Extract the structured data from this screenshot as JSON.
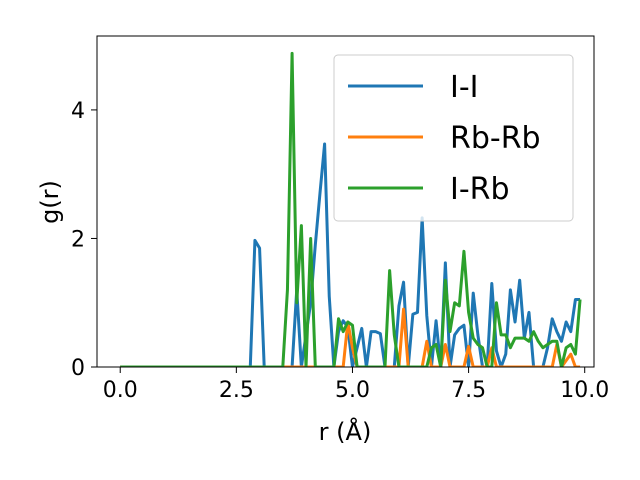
{
  "chart_data": {
    "type": "line",
    "xlabel": "r (Å)",
    "ylabel": "g(r)",
    "xlim": [
      -0.5,
      10.2
    ],
    "ylim": [
      0,
      5.15
    ],
    "xticks": [
      0.0,
      2.5,
      5.0,
      7.5,
      10.0
    ],
    "xtick_labels": [
      "0.0",
      "2.5",
      "5.0",
      "7.5",
      "10.0"
    ],
    "yticks": [
      0,
      2,
      4
    ],
    "ytick_labels": [
      "0",
      "2",
      "4"
    ],
    "grid": false,
    "legend_position": "top-right",
    "series": [
      {
        "name": "I-I",
        "color": "#1f77b4",
        "x": [
          0.0,
          0.5,
          1.0,
          1.5,
          2.0,
          2.5,
          2.8,
          2.9,
          3.0,
          3.1,
          3.2,
          3.5,
          3.7,
          3.8,
          3.9,
          4.0,
          4.1,
          4.2,
          4.3,
          4.4,
          4.5,
          4.6,
          4.7,
          4.8,
          4.9,
          5.0,
          5.1,
          5.2,
          5.3,
          5.4,
          5.5,
          5.6,
          5.7,
          5.8,
          5.9,
          6.0,
          6.1,
          6.2,
          6.3,
          6.4,
          6.5,
          6.6,
          6.7,
          6.8,
          6.9,
          7.0,
          7.1,
          7.2,
          7.3,
          7.4,
          7.5,
          7.6,
          7.7,
          7.8,
          7.9,
          8.0,
          8.1,
          8.2,
          8.3,
          8.4,
          8.5,
          8.6,
          8.7,
          8.8,
          8.9,
          9.0,
          9.1,
          9.2,
          9.3,
          9.4,
          9.5,
          9.6,
          9.7,
          9.8,
          9.9
        ],
        "values": [
          0,
          0,
          0,
          0,
          0,
          0,
          0,
          1.97,
          1.85,
          0,
          0,
          0,
          0,
          1.2,
          0.0,
          0.5,
          1.0,
          1.9,
          2.7,
          3.47,
          1.1,
          0,
          0.55,
          0.72,
          0.62,
          0,
          0.3,
          0.6,
          0,
          0.55,
          0.55,
          0.52,
          0,
          0,
          0,
          0.95,
          1.32,
          0,
          0.82,
          0.85,
          2.32,
          0.8,
          0,
          0.72,
          0,
          1.62,
          0,
          0.5,
          0.6,
          0.65,
          0,
          1.15,
          0.5,
          0,
          0,
          1.3,
          0.25,
          0,
          0.2,
          1.2,
          0.7,
          1.35,
          0.45,
          0.85,
          0,
          0,
          0,
          0.3,
          0.75,
          0.55,
          0.4,
          0.7,
          0.55,
          1.05,
          1.05
        ]
      },
      {
        "name": "Rb-Rb",
        "color": "#ff7f0e",
        "x": [
          0.0,
          0.5,
          1.0,
          1.5,
          2.0,
          2.5,
          3.0,
          3.5,
          4.0,
          4.5,
          4.8,
          4.9,
          5.0,
          5.1,
          5.5,
          6.0,
          6.1,
          6.2,
          6.3,
          6.5,
          6.6,
          6.7,
          6.9,
          7.0,
          7.1,
          7.4,
          7.5,
          7.6,
          7.9,
          8.0,
          8.1,
          8.5,
          9.0,
          9.3,
          9.4,
          9.5,
          9.7,
          9.8,
          9.9
        ],
        "values": [
          0,
          0,
          0,
          0,
          0,
          0,
          0,
          0,
          0,
          0,
          0,
          0.7,
          0.3,
          0,
          0,
          0,
          0.9,
          0,
          0,
          0,
          0.4,
          0,
          0,
          0.35,
          0,
          0,
          0.32,
          0,
          0,
          0.3,
          0,
          0,
          0,
          0,
          0.35,
          0,
          0.2,
          0,
          0
        ]
      },
      {
        "name": "I-Rb",
        "color": "#2ca02c",
        "x": [
          0.0,
          0.5,
          1.0,
          1.5,
          2.0,
          2.5,
          3.0,
          3.5,
          3.6,
          3.7,
          3.8,
          3.9,
          4.0,
          4.1,
          4.2,
          4.3,
          4.5,
          4.6,
          4.7,
          4.8,
          4.9,
          5.0,
          5.1,
          5.5,
          5.7,
          5.8,
          5.9,
          6.0,
          6.1,
          6.2,
          6.3,
          6.4,
          6.5,
          6.6,
          6.7,
          6.8,
          6.9,
          7.0,
          7.1,
          7.2,
          7.3,
          7.4,
          7.5,
          7.6,
          7.7,
          7.8,
          7.9,
          8.0,
          8.1,
          8.2,
          8.3,
          8.4,
          8.5,
          8.6,
          8.7,
          8.8,
          8.9,
          9.0,
          9.1,
          9.2,
          9.3,
          9.4,
          9.5,
          9.6,
          9.7,
          9.8,
          9.9
        ],
        "values": [
          0,
          0,
          0,
          0,
          0,
          0,
          0,
          0,
          1.2,
          4.88,
          1.0,
          2.2,
          0.0,
          2.0,
          0,
          0,
          0,
          0,
          0.75,
          0.55,
          0.7,
          0.65,
          0,
          0,
          0,
          1.5,
          0.5,
          0,
          0,
          0,
          0,
          0,
          0,
          0,
          0.3,
          0.35,
          0,
          1.35,
          0.55,
          1.0,
          0.95,
          1.8,
          0.85,
          0.45,
          0.35,
          0.3,
          0,
          0,
          1.0,
          0.5,
          0.5,
          0.3,
          0.45,
          0.45,
          0.45,
          0.4,
          0.55,
          0.4,
          0.3,
          0.35,
          0.4,
          0.4,
          0,
          0.3,
          0.35,
          0.2,
          1.05
        ]
      }
    ]
  }
}
